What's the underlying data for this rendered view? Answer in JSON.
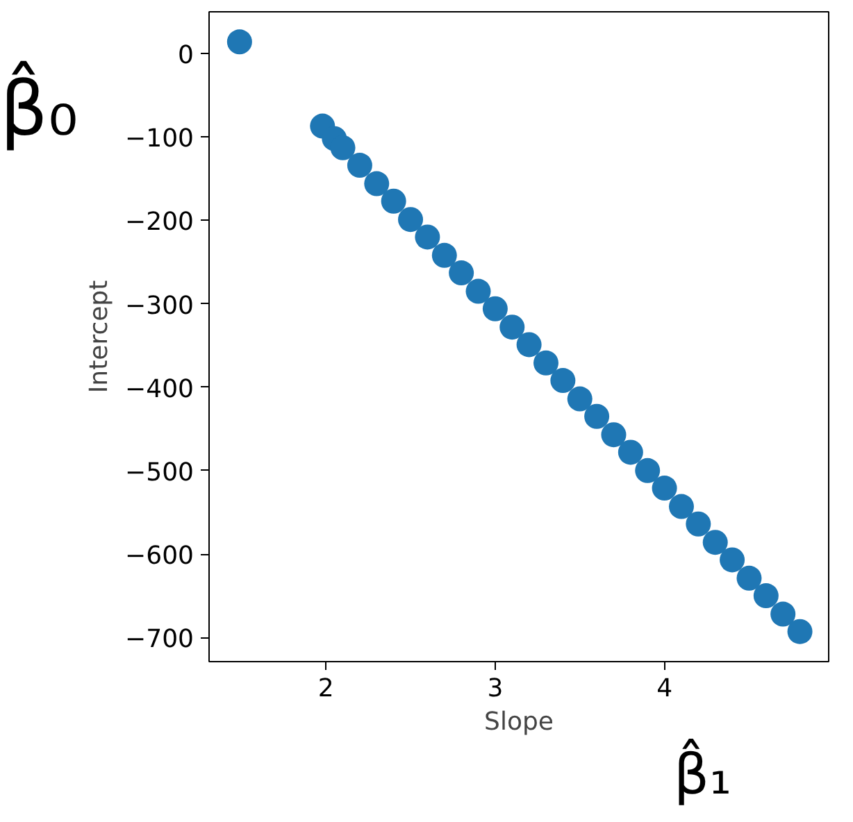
{
  "chart_data": {
    "type": "scatter",
    "xlabel": "Slope",
    "ylabel": "Intercept",
    "xlim": [
      1.31,
      4.97
    ],
    "ylim": [
      -729,
      50
    ],
    "xticks": [
      2,
      3,
      4
    ],
    "yticks": [
      0,
      -100,
      -200,
      -300,
      -400,
      -500,
      -600,
      -700
    ],
    "marker": "circle",
    "grid": false,
    "annotations": [
      "β̂₀",
      "β̂₁"
    ],
    "series": [
      {
        "color": "#1f77b4",
        "x": [
          1.49,
          1.98,
          2.05,
          2.1,
          2.2,
          2.3,
          2.4,
          2.5,
          2.6,
          2.7,
          2.8,
          2.9,
          3.0,
          3.1,
          3.2,
          3.3,
          3.4,
          3.5,
          3.6,
          3.7,
          3.8,
          3.9,
          4.0,
          4.1,
          4.2,
          4.3,
          4.4,
          4.5,
          4.6,
          4.7,
          4.8
        ],
        "values": [
          14,
          -87,
          -102,
          -113,
          -134,
          -156,
          -177,
          -199,
          -220,
          -242,
          -263,
          -285,
          -306,
          -328,
          -349,
          -371,
          -392,
          -414,
          -435,
          -457,
          -478,
          -500,
          -521,
          -543,
          -564,
          -586,
          -607,
          -629,
          -650,
          -672,
          -693
        ]
      }
    ]
  }
}
